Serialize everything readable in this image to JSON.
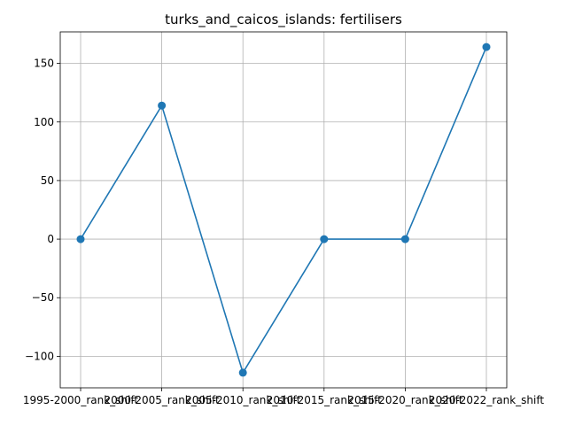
{
  "chart_data": {
    "type": "line",
    "title": "turks_and_caicos_islands: fertilisers",
    "xlabel": "",
    "ylabel": "",
    "categories": [
      "1995-2000_rank_shift",
      "2000-2005_rank_shift",
      "2005-2010_rank_shift",
      "2010-2015_rank_shift",
      "2015-2020_rank_shift",
      "2020-2022_rank_shift"
    ],
    "series": [
      {
        "values": [
          0,
          114,
          -114,
          0,
          0,
          164
        ]
      }
    ],
    "ylim": [
      -126.9,
      176.9
    ],
    "yticks": [
      -100,
      -50,
      0,
      50,
      100,
      150
    ],
    "ytick_labels": [
      "−100",
      "−50",
      "0",
      "50",
      "100",
      "150"
    ],
    "grid": true,
    "colors": {
      "line": "#1f77b4",
      "grid": "#b0b0b0",
      "axes": "#000000"
    }
  }
}
